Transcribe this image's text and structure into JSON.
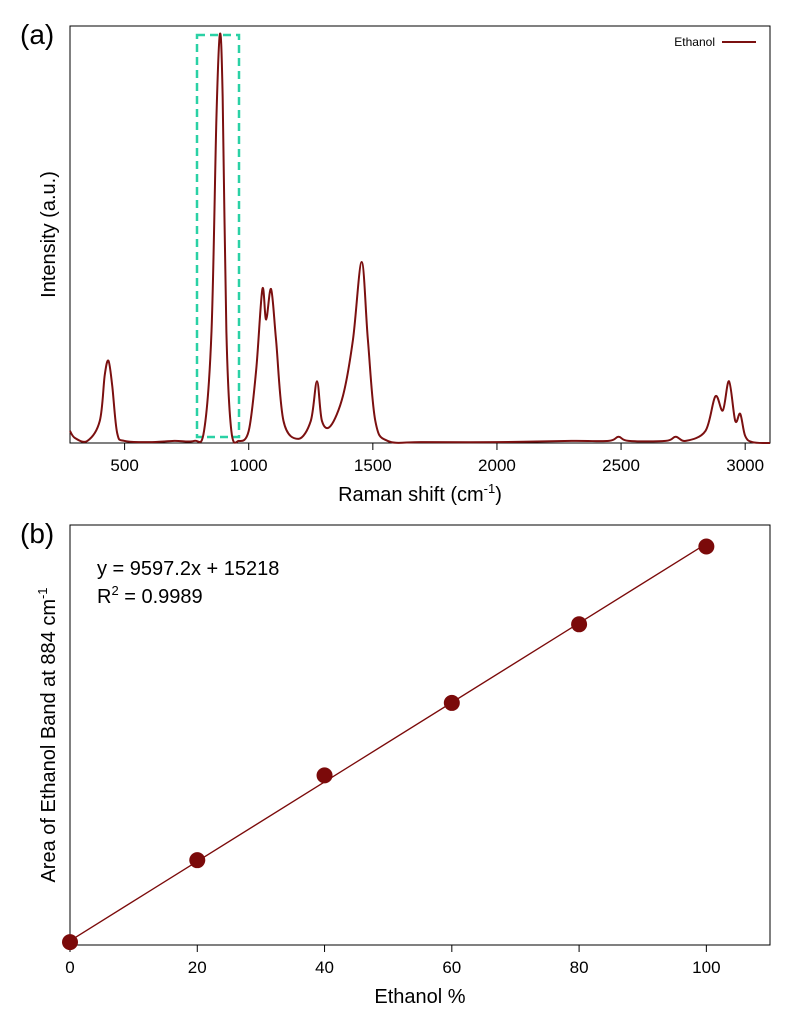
{
  "chart_data": [
    {
      "type": "line",
      "panel_label": "(a)",
      "x_label": "Raman shift (cm",
      "x_label_sup": "-1",
      "x_label_end": ")",
      "y_label": "Intensity (a.u.)",
      "x": [
        280,
        300,
        350,
        400,
        420,
        435,
        450,
        470,
        500,
        600,
        700,
        780,
        820,
        850,
        870,
        884,
        895,
        910,
        930,
        960,
        1000,
        1030,
        1055,
        1070,
        1090,
        1110,
        1140,
        1200,
        1250,
        1275,
        1295,
        1330,
        1380,
        1420,
        1455,
        1480,
        1510,
        1560,
        1700,
        2000,
        2300,
        2450,
        2490,
        2530,
        2680,
        2720,
        2760,
        2840,
        2880,
        2910,
        2935,
        2960,
        2980,
        3000,
        3030,
        3100
      ],
      "series": [
        {
          "name": "Ethanol",
          "color": "#7b1010",
          "values": [
            2.9,
            1.2,
            0.5,
            5.3,
            16.3,
            19.7,
            13.8,
            2.4,
            0.5,
            0.2,
            0.5,
            0.5,
            2.9,
            26.7,
            78.2,
            98.1,
            83.0,
            26.7,
            2.9,
            0.5,
            2.9,
            17.5,
            36.9,
            29.6,
            36.9,
            24.8,
            5.3,
            1.0,
            5.3,
            14.8,
            5.3,
            4.1,
            11.4,
            24.8,
            43.4,
            24.8,
            5.3,
            0.5,
            0.2,
            0.2,
            0.5,
            0.5,
            1.5,
            0.5,
            0.5,
            1.5,
            0.5,
            2.9,
            11.2,
            7.8,
            14.8,
            5.3,
            7.0,
            1.7,
            0.2,
            0
          ]
        }
      ],
      "xlim": [
        280,
        3100
      ],
      "ylim": [
        0,
        100
      ],
      "xticks": [
        500,
        1000,
        1500,
        2000,
        2500,
        3000
      ],
      "legend": "upper right",
      "highlight_color": "#2ad1a5"
    },
    {
      "type": "scatter",
      "panel_label": "(b)",
      "x_label": "Ethanol %",
      "y_label": "Area of Ethanol Band at 884 cm",
      "y_label_sup": "-1",
      "x": [
        0,
        20,
        40,
        60,
        80,
        100
      ],
      "series": [
        {
          "color": "#7b0a0a",
          "values": [
            12000,
            210000,
            415000,
            590000,
            780000,
            968000
          ]
        }
      ],
      "fit": {
        "slope": 9597.2,
        "intercept": 15218
      },
      "fit_label": "y = 9597.2x + 15218",
      "r2_label": [
        "R",
        "2",
        " = 0.9989"
      ],
      "xlim": [
        0,
        110
      ],
      "ylim": [
        5000,
        1020000
      ],
      "xticks": [
        0,
        20,
        40,
        60,
        80,
        100
      ]
    }
  ]
}
